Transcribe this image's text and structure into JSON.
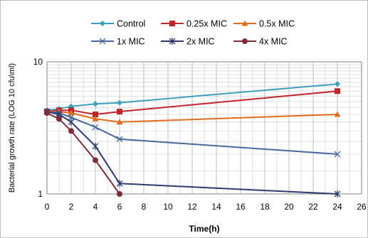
{
  "chart_data": {
    "type": "line",
    "title": "",
    "xlabel": "Time(h)",
    "ylabel": "Bacterial growth rate (LOG 10 cfu\\ml)",
    "x_scale": "linear",
    "y_scale": "log",
    "xlim": [
      0,
      26
    ],
    "ylim": [
      1,
      10
    ],
    "x_ticks": [
      "0",
      "2",
      "4",
      "6",
      "8",
      "10",
      "12",
      "14",
      "16",
      "18",
      "20",
      "22",
      "24",
      "26"
    ],
    "y_ticks": [
      "1",
      "10"
    ],
    "grid": true,
    "legend_position": "top",
    "series": [
      {
        "name": "Control",
        "color": "#3a9fbf",
        "marker": "diamond",
        "x": [
          0,
          1,
          2,
          4,
          6,
          24
        ],
        "y": [
          4.3,
          4.4,
          4.6,
          4.8,
          4.9,
          6.8
        ]
      },
      {
        "name": "0.25x MIC",
        "color": "#c0252a",
        "marker": "square",
        "x": [
          0,
          1,
          2,
          4,
          6,
          24
        ],
        "y": [
          4.2,
          4.3,
          4.3,
          4.0,
          4.2,
          6.0
        ]
      },
      {
        "name": "0.5x MIC",
        "color": "#e06c1c",
        "marker": "triangle",
        "x": [
          0,
          1,
          2,
          4,
          6,
          24
        ],
        "y": [
          4.2,
          4.2,
          4.1,
          3.7,
          3.5,
          4.0
        ]
      },
      {
        "name": "1x MIC",
        "color": "#44699e",
        "marker": "x",
        "x": [
          0,
          1,
          2,
          4,
          6,
          24
        ],
        "y": [
          4.2,
          4.1,
          3.8,
          3.2,
          2.6,
          2.0
        ]
      },
      {
        "name": "2x MIC",
        "color": "#2e3a6e",
        "marker": "star",
        "x": [
          0,
          1,
          2,
          4,
          6,
          24
        ],
        "y": [
          4.2,
          4.0,
          3.5,
          2.3,
          1.2,
          1.0
        ]
      },
      {
        "name": "4x MIC",
        "color": "#7b2d3a",
        "marker": "circle",
        "x": [
          0,
          1,
          2,
          4,
          6
        ],
        "y": [
          4.1,
          3.7,
          3.0,
          1.8,
          1.0
        ]
      }
    ]
  }
}
